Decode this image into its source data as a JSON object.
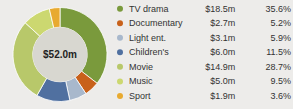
{
  "chart_data": {
    "type": "pie",
    "categories": [
      "TV drama",
      "Documentary",
      "Light ent.",
      "Children's",
      "Movie",
      "Music",
      "Sport"
    ],
    "values": [
      18.5,
      2.7,
      3.1,
      6.0,
      14.9,
      5.0,
      1.9
    ],
    "value_labels": [
      "$18.5m",
      "$2.7m",
      "$3.1m",
      "$6.0m",
      "$14.9m",
      "$5.0m",
      "$1.9m"
    ],
    "percentages": [
      35.6,
      5.2,
      5.9,
      11.5,
      28.7,
      9.5,
      3.6
    ],
    "percentage_labels": [
      "35.6%",
      "5.2%",
      "5.9%",
      "11.5%",
      "28.7%",
      "9.5%",
      "3.6%"
    ],
    "colors": [
      "#7a9a3c",
      "#c8611a",
      "#a8b8cc",
      "#5070a0",
      "#b8c86a",
      "#ccd870",
      "#e8aa30"
    ],
    "center_label": "$52.0m",
    "legend": "right"
  }
}
